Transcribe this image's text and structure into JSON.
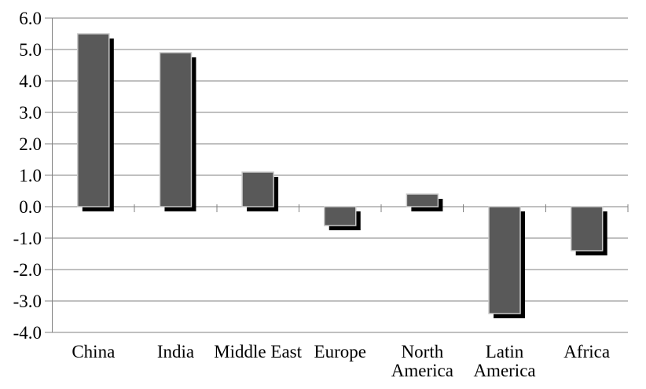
{
  "chart_data": {
    "type": "bar",
    "title": "",
    "xlabel": "",
    "ylabel": "",
    "categories": [
      "China",
      "India",
      "Middle East",
      "Europe",
      "North America",
      "Latin America",
      "Africa"
    ],
    "category_lines": [
      [
        "China"
      ],
      [
        "India"
      ],
      [
        "Middle East"
      ],
      [
        "Europe"
      ],
      [
        "North",
        "America"
      ],
      [
        "Latin",
        "America"
      ],
      [
        "Africa"
      ]
    ],
    "values": [
      5.5,
      4.9,
      1.1,
      -0.6,
      0.4,
      -3.4,
      -1.4
    ],
    "ylim": [
      -4.0,
      6.0
    ],
    "ytick_step": 1.0,
    "ytick_labels": [
      "6.0",
      "5.0",
      "4.0",
      "3.0",
      "2.0",
      "1.0",
      "0.0",
      "-1.0",
      "-2.0",
      "-3.0",
      "-4.0"
    ],
    "grid": true,
    "legend": false,
    "colors": {
      "bar_fill": "#595959",
      "bar_border": "#c8c8c8",
      "bar_shadow": "#000000",
      "gridline": "#808080",
      "axis": "#808080",
      "text": "#000000",
      "background": "#ffffff"
    }
  }
}
